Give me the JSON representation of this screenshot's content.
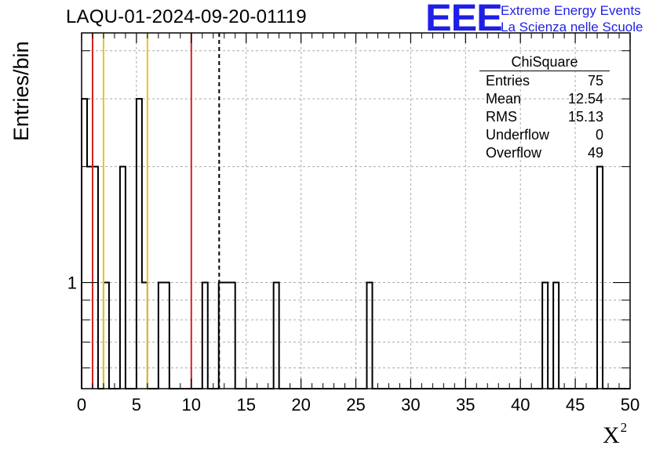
{
  "title": "LAQU-01-2024-09-20-01119",
  "logo": {
    "mark": "EEE",
    "line1": "Extreme Energy Events",
    "line2": "La Scienza nelle Scuole",
    "color": "#1f1fe6"
  },
  "stats": {
    "title": "ChiSquare",
    "rows": [
      {
        "label": "Entries",
        "value": "75"
      },
      {
        "label": "Mean",
        "value": "12.54"
      },
      {
        "label": "RMS",
        "value": "15.13"
      },
      {
        "label": "Underflow",
        "value": "0"
      },
      {
        "label": "Overflow",
        "value": "49"
      }
    ]
  },
  "chart_data": {
    "type": "bar",
    "title": "LAQU-01-2024-09-20-01119",
    "xlabel": "X",
    "xlabel_superscript": "2",
    "ylabel": "Entries/bin",
    "xlim": [
      0,
      50
    ],
    "ylog": true,
    "ylim": [
      0.53,
      4.45
    ],
    "grid": true,
    "bin_width": 0.5,
    "x_ticks": [
      "0",
      "5",
      "10",
      "15",
      "20",
      "25",
      "30",
      "35",
      "40",
      "45",
      "50"
    ],
    "y_tick_labels": [
      {
        "value": 1,
        "label": "1"
      }
    ],
    "bins": [
      {
        "x0": 0.0,
        "count": 3
      },
      {
        "x0": 0.5,
        "count": 2
      },
      {
        "x0": 1.0,
        "count": 2
      },
      {
        "x0": 2.0,
        "count": 1
      },
      {
        "x0": 3.5,
        "count": 2
      },
      {
        "x0": 5.0,
        "count": 3
      },
      {
        "x0": 5.5,
        "count": 1
      },
      {
        "x0": 7.0,
        "count": 1
      },
      {
        "x0": 7.5,
        "count": 1
      },
      {
        "x0": 11.0,
        "count": 1
      },
      {
        "x0": 12.5,
        "count": 1
      },
      {
        "x0": 13.0,
        "count": 1
      },
      {
        "x0": 13.5,
        "count": 1
      },
      {
        "x0": 17.5,
        "count": 1
      },
      {
        "x0": 26.0,
        "count": 1
      },
      {
        "x0": 42.0,
        "count": 1
      },
      {
        "x0": 43.0,
        "count": 1
      },
      {
        "x0": 47.0,
        "count": 2
      }
    ],
    "reference_lines": [
      {
        "x": 1,
        "color": "#d42020",
        "style": "solid"
      },
      {
        "x": 2,
        "color": "#f0c020",
        "style": "solid"
      },
      {
        "x": 6,
        "color": "#f0c020",
        "style": "solid"
      },
      {
        "x": 10,
        "color": "#d42020",
        "style": "solid"
      },
      {
        "x": 12.54,
        "color": "#000000",
        "style": "dashed"
      }
    ]
  }
}
